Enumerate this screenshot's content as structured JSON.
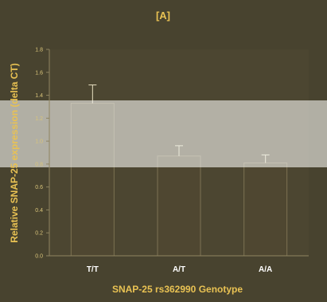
{
  "colors": {
    "background": "#48432f",
    "plot_background": "#4c4631",
    "bar": "#4f4731",
    "bar_edge": "#7d7152",
    "axis": "#8f8460",
    "title": "#e9c253",
    "highlight_band": "#f2f2ee"
  },
  "chart_data": {
    "type": "bar",
    "title": "[A]",
    "xlabel": "SNAP-25 rs362990 Genotype",
    "ylabel": "Relative SNAP-25 expression (delta CT)",
    "categories": [
      "T/T",
      "A/T",
      "A/A"
    ],
    "values": [
      1.33,
      0.87,
      0.81
    ],
    "errors": [
      0.16,
      0.09,
      0.07
    ],
    "ylim": [
      0,
      1.8
    ],
    "yticks": [
      "0.0",
      "0.2",
      "0.4",
      "0.6",
      "0.8",
      "1.0",
      "1.2",
      "1.4",
      "1.6",
      "1.8"
    ],
    "grid": false
  }
}
